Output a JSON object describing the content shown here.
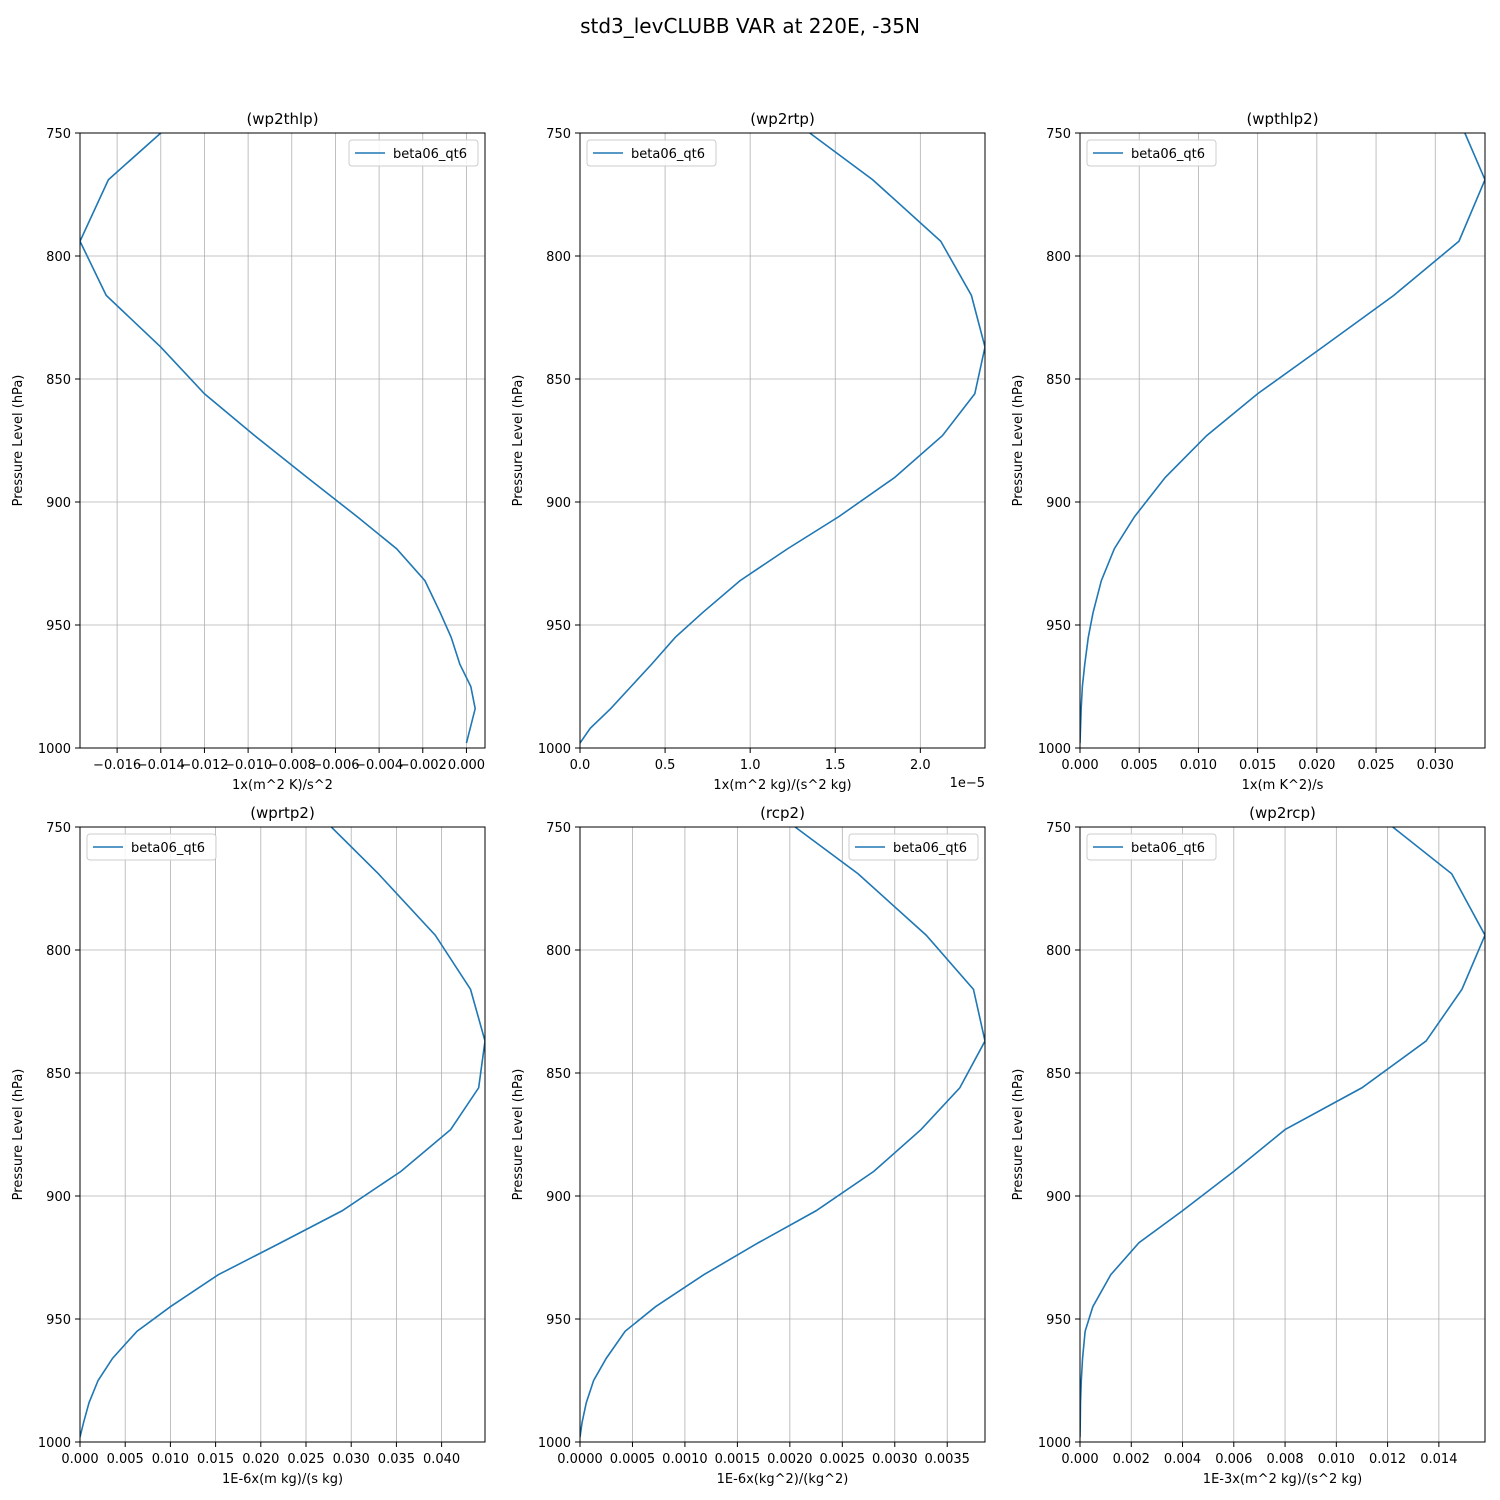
{
  "figure": {
    "title": "std3_levCLUBB VAR at 220E, -35N",
    "line_color": "#1f77b4",
    "grid_color": "#b0b0b0"
  },
  "chart_data": [
    {
      "type": "line",
      "title": "(wp2thlp)",
      "xlabel": "1x(m^2 K)/s^2",
      "ylabel": "Pressure Level (hPa)",
      "offset_text": "",
      "xlim": [
        -0.0177,
        0.00085
      ],
      "ylim": [
        1000,
        750
      ],
      "y_inverted": true,
      "x_ticks": [
        -0.016,
        -0.014,
        -0.012,
        -0.01,
        -0.008,
        -0.006,
        -0.004,
        -0.002,
        0.0
      ],
      "x_tick_labels": [
        "−0.016",
        "−0.014",
        "−0.012",
        "−0.010",
        "−0.008",
        "−0.006",
        "−0.004",
        "−0.002",
        "0.000"
      ],
      "y_ticks": [
        750,
        800,
        850,
        900,
        950,
        1000
      ],
      "y_tick_labels": [
        "750",
        "800",
        "850",
        "900",
        "950",
        "1000"
      ],
      "grid": true,
      "legend_position": "upper right",
      "series": [
        {
          "name": "beta06_qt6",
          "pressure": [
            750,
            769,
            794,
            816,
            837,
            856,
            873,
            890,
            906,
            919,
            932,
            945,
            955,
            966,
            975,
            984,
            998
          ],
          "x": [
            -0.014,
            -0.0164,
            -0.0177,
            -0.0165,
            -0.014,
            -0.012,
            -0.0097,
            -0.0073,
            -0.005,
            -0.0032,
            -0.0019,
            -0.0012,
            -0.0007,
            -0.0003,
            0.0002,
            0.0004,
            0.0
          ]
        }
      ]
    },
    {
      "type": "line",
      "title": "(wp2rtp)",
      "xlabel": "1x(m^2 kg)/(s^2 kg)",
      "ylabel": "Pressure Level (hPa)",
      "offset_text": "1e−5",
      "xlim": [
        0,
        2.38
      ],
      "ylim": [
        1000,
        750
      ],
      "y_inverted": true,
      "x_ticks": [
        0.0,
        0.5,
        1.0,
        1.5,
        2.0
      ],
      "x_tick_labels": [
        "0.0",
        "0.5",
        "1.0",
        "1.5",
        "2.0"
      ],
      "y_ticks": [
        750,
        800,
        850,
        900,
        950,
        1000
      ],
      "y_tick_labels": [
        "750",
        "800",
        "850",
        "900",
        "950",
        "1000"
      ],
      "grid": true,
      "legend_position": "upper left",
      "series": [
        {
          "name": "beta06_qt6",
          "pressure": [
            750,
            769,
            794,
            816,
            837,
            856,
            873,
            890,
            906,
            919,
            932,
            945,
            955,
            966,
            975,
            984,
            992,
            998
          ],
          "x": [
            1.35,
            1.72,
            2.12,
            2.3,
            2.38,
            2.32,
            2.13,
            1.85,
            1.52,
            1.22,
            0.94,
            0.72,
            0.56,
            0.42,
            0.3,
            0.18,
            0.06,
            0.0
          ]
        }
      ]
    },
    {
      "type": "line",
      "title": "(wpthlp2)",
      "xlabel": "1x(m K^2)/s",
      "ylabel": "Pressure Level (hPa)",
      "offset_text": "",
      "xlim": [
        0,
        0.0342
      ],
      "ylim": [
        1000,
        750
      ],
      "y_inverted": true,
      "x_ticks": [
        0.0,
        0.005,
        0.01,
        0.015,
        0.02,
        0.025,
        0.03
      ],
      "x_tick_labels": [
        "0.000",
        "0.005",
        "0.010",
        "0.015",
        "0.020",
        "0.025",
        "0.030"
      ],
      "y_ticks": [
        750,
        800,
        850,
        900,
        950,
        1000
      ],
      "y_tick_labels": [
        "750",
        "800",
        "850",
        "900",
        "950",
        "1000"
      ],
      "grid": true,
      "legend_position": "upper left",
      "series": [
        {
          "name": "beta06_qt6",
          "pressure": [
            750,
            769,
            794,
            816,
            837,
            856,
            873,
            890,
            906,
            919,
            932,
            945,
            955,
            966,
            975,
            984,
            998
          ],
          "x": [
            0.0325,
            0.0342,
            0.032,
            0.0265,
            0.0205,
            0.015,
            0.0107,
            0.0072,
            0.0046,
            0.0029,
            0.0018,
            0.0011,
            0.0007,
            0.0004,
            0.0002,
            0.0001,
            0.0
          ]
        }
      ]
    },
    {
      "type": "line",
      "title": "(wprtp2)",
      "xlabel": "1E-6x(m kg)/(s kg)",
      "ylabel": "Pressure Level (hPa)",
      "offset_text": "",
      "xlim": [
        0,
        0.0448
      ],
      "ylim": [
        1000,
        750
      ],
      "y_inverted": true,
      "x_ticks": [
        0.0,
        0.005,
        0.01,
        0.015,
        0.02,
        0.025,
        0.03,
        0.035,
        0.04
      ],
      "x_tick_labels": [
        "0.000",
        "0.005",
        "0.010",
        "0.015",
        "0.020",
        "0.025",
        "0.030",
        "0.035",
        "0.040"
      ],
      "y_ticks": [
        750,
        800,
        850,
        900,
        950,
        1000
      ],
      "y_tick_labels": [
        "750",
        "800",
        "850",
        "900",
        "950",
        "1000"
      ],
      "grid": true,
      "legend_position": "upper left",
      "series": [
        {
          "name": "beta06_qt6",
          "pressure": [
            750,
            769,
            794,
            816,
            837,
            856,
            873,
            890,
            906,
            919,
            932,
            945,
            955,
            966,
            975,
            984,
            992,
            998
          ],
          "x": [
            0.0278,
            0.033,
            0.0393,
            0.0432,
            0.0448,
            0.0441,
            0.041,
            0.0355,
            0.029,
            0.0222,
            0.0153,
            0.01,
            0.0063,
            0.0036,
            0.002,
            0.001,
            0.0004,
            0.0
          ]
        }
      ]
    },
    {
      "type": "line",
      "title": "(rcp2)",
      "xlabel": "1E-6x(kg^2)/(kg^2)",
      "ylabel": "Pressure Level (hPa)",
      "offset_text": "",
      "xlim": [
        0,
        0.00386
      ],
      "ylim": [
        1000,
        750
      ],
      "y_inverted": true,
      "x_ticks": [
        0.0,
        0.0005,
        0.001,
        0.0015,
        0.002,
        0.0025,
        0.003,
        0.0035
      ],
      "x_tick_labels": [
        "0.0000",
        "0.0005",
        "0.0010",
        "0.0015",
        "0.0020",
        "0.0025",
        "0.0030",
        "0.0035"
      ],
      "y_ticks": [
        750,
        800,
        850,
        900,
        950,
        1000
      ],
      "y_tick_labels": [
        "750",
        "800",
        "850",
        "900",
        "950",
        "1000"
      ],
      "grid": true,
      "legend_position": "upper right",
      "series": [
        {
          "name": "beta06_qt6",
          "pressure": [
            750,
            769,
            794,
            816,
            837,
            856,
            873,
            890,
            906,
            919,
            932,
            945,
            955,
            966,
            975,
            984,
            992,
            998
          ],
          "x": [
            0.00205,
            0.00265,
            0.0033,
            0.00375,
            0.00386,
            0.00362,
            0.00325,
            0.0028,
            0.00225,
            0.0017,
            0.00118,
            0.00072,
            0.00043,
            0.00025,
            0.00013,
            6e-05,
            2e-05,
            0.0
          ]
        }
      ]
    },
    {
      "type": "line",
      "title": "(wp2rcp)",
      "xlabel": "1E-3x(m^2 kg)/(s^2 kg)",
      "ylabel": "Pressure Level (hPa)",
      "offset_text": "",
      "xlim": [
        0,
        0.0158
      ],
      "ylim": [
        1000,
        750
      ],
      "y_inverted": true,
      "x_ticks": [
        0.0,
        0.002,
        0.004,
        0.006,
        0.008,
        0.01,
        0.012,
        0.014
      ],
      "x_tick_labels": [
        "0.000",
        "0.002",
        "0.004",
        "0.006",
        "0.008",
        "0.010",
        "0.012",
        "0.014"
      ],
      "y_ticks": [
        750,
        800,
        850,
        900,
        950,
        1000
      ],
      "y_tick_labels": [
        "750",
        "800",
        "850",
        "900",
        "950",
        "1000"
      ],
      "grid": true,
      "legend_position": "upper left",
      "series": [
        {
          "name": "beta06_qt6",
          "pressure": [
            750,
            769,
            794,
            816,
            837,
            856,
            873,
            890,
            906,
            919,
            932,
            945,
            955,
            966,
            975,
            984,
            992,
            998
          ],
          "x": [
            0.0122,
            0.0145,
            0.0158,
            0.0149,
            0.0135,
            0.011,
            0.008,
            0.006,
            0.004,
            0.0023,
            0.0012,
            0.0005,
            0.0002,
            0.0001,
            5e-05,
            2e-05,
            1e-05,
            0.0
          ]
        }
      ]
    }
  ]
}
